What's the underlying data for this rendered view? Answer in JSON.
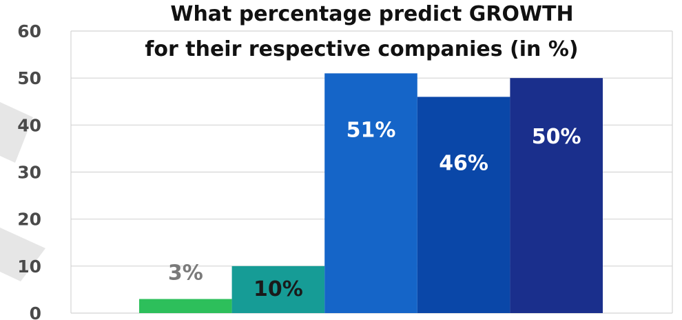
{
  "chart_data": {
    "type": "bar",
    "title_lines": [
      "What percentage predict GROWTH",
      "for their respective companies (in %)"
    ],
    "categories": [
      "",
      "",
      "",
      "",
      ""
    ],
    "values": [
      3,
      10,
      51,
      46,
      50
    ],
    "data_labels": [
      "3%",
      "10%",
      "51%",
      "46%",
      "50%"
    ],
    "bar_colors": [
      "#2dbf5b",
      "#169c96",
      "#1565c8",
      "#0a47a8",
      "#1a2f8c"
    ],
    "label_colors": [
      "#7a7a7a",
      "#1a1a1a",
      "#ffffff",
      "#ffffff",
      "#ffffff"
    ],
    "ylim": [
      0,
      60
    ],
    "yticks": [
      0,
      10,
      20,
      30,
      40,
      50,
      60
    ],
    "grid": true,
    "legend": false
  },
  "colors": {
    "grid": "#d4d4d4",
    "title": "#111111",
    "tick": "#4a4a4a",
    "decor": "#e6e6e6"
  }
}
